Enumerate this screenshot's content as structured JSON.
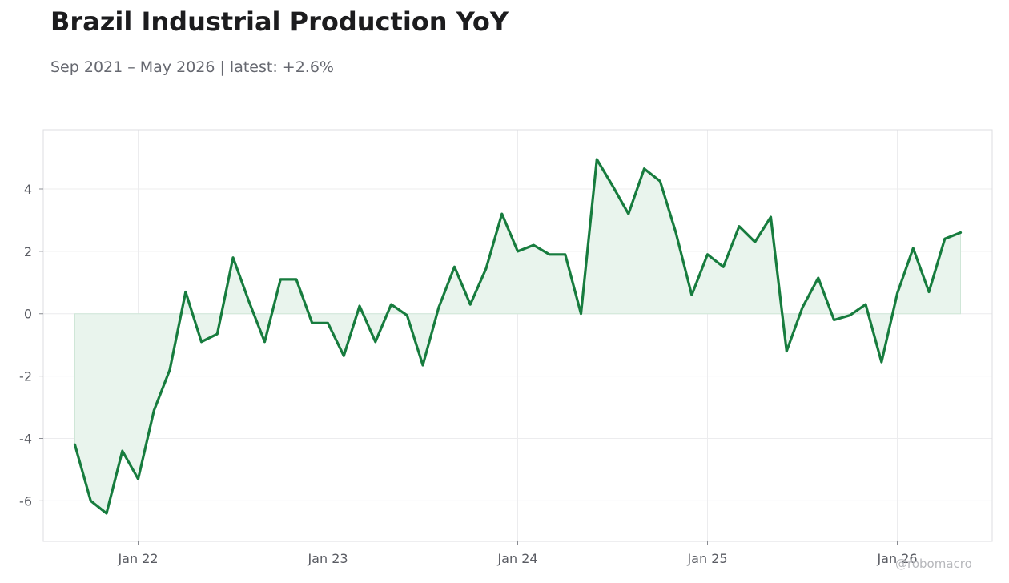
{
  "title": "Brazil Industrial Production YoY",
  "subtitle": "Sep 2021 – May 2026 | latest: +2.6%",
  "watermark": "@robomacro",
  "chart_data": {
    "type": "line",
    "title": "Brazil Industrial Production YoY",
    "subtitle": "Sep 2021 – May 2026 | latest: +2.6%",
    "xlabel": "",
    "ylabel": "",
    "x_ticks": [
      "Jan 22",
      "Jan 23",
      "Jan 24",
      "Jan 25",
      "Jan 26"
    ],
    "y_ticks": [
      4,
      2,
      0,
      -2,
      -4,
      -6
    ],
    "ylim": [
      -7.3,
      5.9
    ],
    "xlim": [
      "2021-07",
      "2026-07"
    ],
    "grid": true,
    "fill_to_zero": true,
    "series": [
      {
        "name": "",
        "color": "#177c3e",
        "fill_color": "#e9f4ed",
        "x": [
          "2021-09",
          "2021-10",
          "2021-11",
          "2021-12",
          "2022-01",
          "2022-02",
          "2022-03",
          "2022-04",
          "2022-05",
          "2022-06",
          "2022-07",
          "2022-08",
          "2022-09",
          "2022-10",
          "2022-11",
          "2022-12",
          "2023-01",
          "2023-02",
          "2023-03",
          "2023-04",
          "2023-05",
          "2023-06",
          "2023-07",
          "2023-08",
          "2023-09",
          "2023-10",
          "2023-11",
          "2023-12",
          "2024-01",
          "2024-02",
          "2024-03",
          "2024-04",
          "2024-05",
          "2024-06",
          "2024-07",
          "2024-08",
          "2024-09",
          "2024-10",
          "2024-11",
          "2024-12",
          "2025-01",
          "2025-02",
          "2025-03",
          "2025-04",
          "2025-05",
          "2025-06",
          "2025-07",
          "2025-08",
          "2025-09",
          "2025-10",
          "2025-11",
          "2025-12",
          "2026-01",
          "2026-02",
          "2026-03",
          "2026-04",
          "2026-05"
        ],
        "values": [
          -4.2,
          -6.0,
          -6.4,
          -4.4,
          -5.3,
          -3.1,
          -1.8,
          0.7,
          -0.9,
          -0.65,
          1.8,
          0.4,
          -0.9,
          1.1,
          1.1,
          -0.3,
          -0.3,
          -1.35,
          0.25,
          -0.9,
          0.3,
          -0.05,
          -1.65,
          0.2,
          1.5,
          0.3,
          1.45,
          3.2,
          2.0,
          2.2,
          1.9,
          1.9,
          0.0,
          4.95,
          4.1,
          3.2,
          4.65,
          4.25,
          2.6,
          0.6,
          1.9,
          1.5,
          2.8,
          2.3,
          3.1,
          -1.2,
          0.2,
          1.15,
          -0.2,
          -0.05,
          0.3,
          -1.55,
          0.65,
          2.1,
          0.7,
          2.4,
          2.6
        ]
      }
    ]
  }
}
